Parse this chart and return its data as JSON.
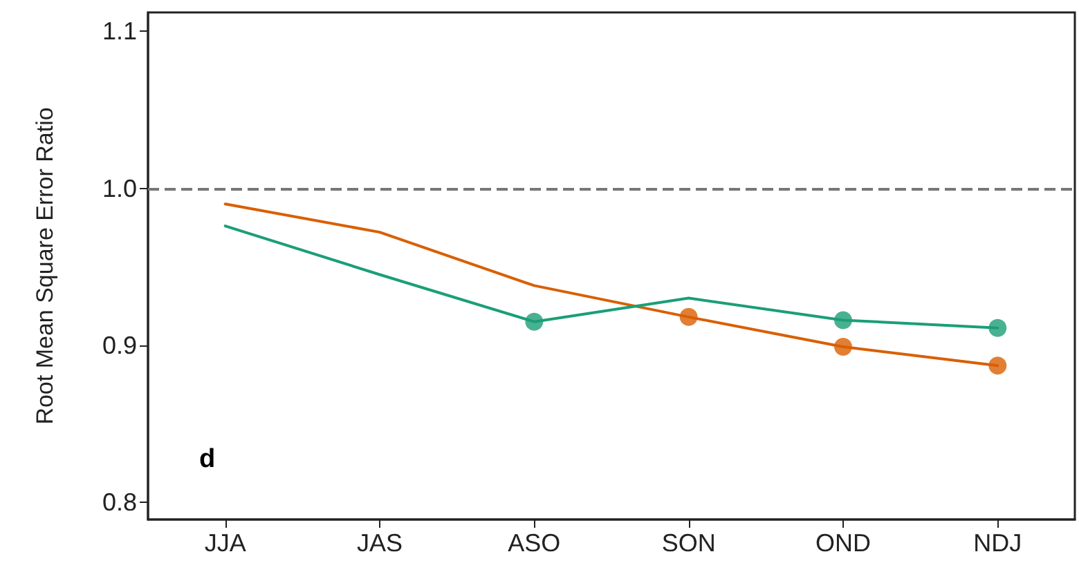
{
  "chart_data": {
    "type": "line",
    "ylabel": "Root Mean Square Error Ratio",
    "categories": [
      "JJA",
      "JAS",
      "ASO",
      "SON",
      "OND",
      "NDJ"
    ],
    "series": [
      {
        "color": "#d95f02",
        "marker": "none",
        "values": [
          0.99,
          0.972,
          0.938,
          0.918,
          0.899,
          0.887
        ]
      },
      {
        "color": "#1b9e77",
        "marker": "none",
        "values": [
          0.976,
          0.945,
          0.915,
          0.93,
          0.916,
          0.911
        ]
      },
      {
        "type": "scatter",
        "color": "#d95f02",
        "marker": "circle",
        "x": [
          "SON",
          "OND",
          "NDJ"
        ],
        "values": [
          0.918,
          0.899,
          0.887
        ]
      },
      {
        "type": "scatter",
        "color": "#1b9e77",
        "marker": "circle",
        "x": [
          "ASO",
          "OND",
          "NDJ"
        ],
        "values": [
          0.915,
          0.916,
          0.911
        ]
      }
    ],
    "ylim": [
      0.789,
      1.112
    ],
    "yticks": [
      0.8,
      0.9,
      {
        "value": 1.0,
        "label": "1.0"
      },
      1.1
    ],
    "ref_lines": [
      {
        "axis": "y",
        "value": 1.0,
        "color": "#777777",
        "line_style": "dashed"
      }
    ],
    "annotations": [
      "d"
    ],
    "line_style": "solid",
    "grid": false
  }
}
